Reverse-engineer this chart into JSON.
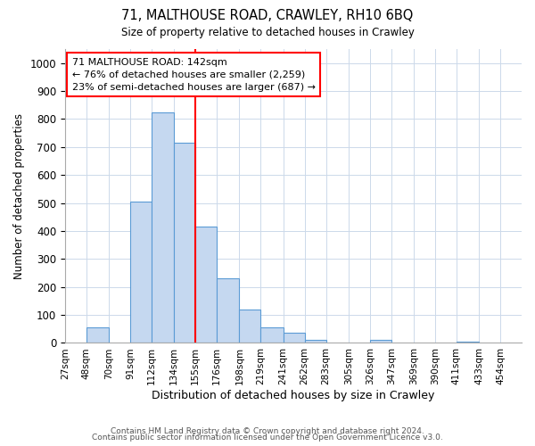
{
  "title1": "71, MALTHOUSE ROAD, CRAWLEY, RH10 6BQ",
  "title2": "Size of property relative to detached houses in Crawley",
  "xlabel": "Distribution of detached houses by size in Crawley",
  "ylabel": "Number of detached properties",
  "footer1": "Contains HM Land Registry data © Crown copyright and database right 2024.",
  "footer2": "Contains public sector information licensed under the Open Government Licence v3.0.",
  "bin_labels": [
    "27sqm",
    "48sqm",
    "70sqm",
    "91sqm",
    "112sqm",
    "134sqm",
    "155sqm",
    "176sqm",
    "198sqm",
    "219sqm",
    "241sqm",
    "262sqm",
    "283sqm",
    "305sqm",
    "326sqm",
    "347sqm",
    "369sqm",
    "390sqm",
    "411sqm",
    "433sqm",
    "454sqm"
  ],
  "bar_heights": [
    0,
    57,
    0,
    505,
    825,
    715,
    415,
    232,
    118,
    57,
    35,
    12,
    0,
    0,
    12,
    0,
    0,
    0,
    5,
    0,
    0
  ],
  "bar_color": "#c5d8f0",
  "bar_edge_color": "#5b9bd5",
  "vline_x_index": 5,
  "vline_color": "red",
  "annotation_line1": "71 MALTHOUSE ROAD: 142sqm",
  "annotation_line2": "← 76% of detached houses are smaller (2,259)",
  "annotation_line3": "23% of semi-detached houses are larger (687) →",
  "annotation_box_color": "white",
  "annotation_box_edge": "red",
  "ylim": [
    0,
    1050
  ],
  "yticks": [
    0,
    100,
    200,
    300,
    400,
    500,
    600,
    700,
    800,
    900,
    1000
  ],
  "bin_edges": [
    27,
    48,
    70,
    91,
    112,
    134,
    155,
    176,
    198,
    219,
    241,
    262,
    283,
    305,
    326,
    347,
    369,
    390,
    411,
    433,
    454,
    475
  ]
}
